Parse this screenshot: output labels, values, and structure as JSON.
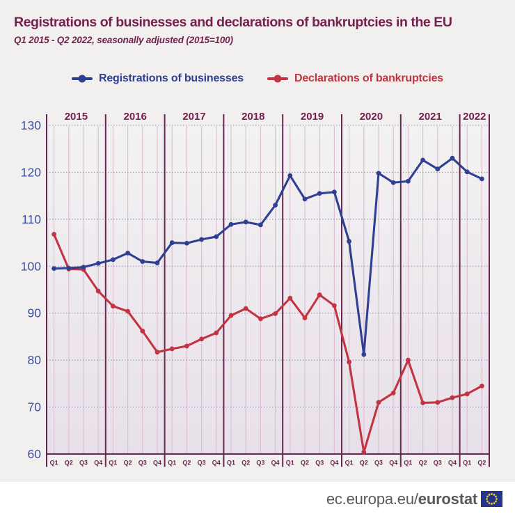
{
  "header": {
    "title": "Registrations of businesses and declarations of bankruptcies in the EU",
    "subtitle": "Q1 2015 - Q2 2022, seasonally adjusted (2015=100)"
  },
  "legend": {
    "items": [
      {
        "label": "Registrations of businesses",
        "color": "#2f3f92"
      },
      {
        "label": "Declarations of bankruptcies",
        "color": "#c23441"
      }
    ]
  },
  "footer": {
    "url_regular": "ec.europa.eu/",
    "url_bold": "eurostat",
    "flag_icon": "eu-flag-icon"
  },
  "colors": {
    "plum": "#75204f",
    "axis_dark": "#6b2551",
    "quarter_line": "#dcc0d2",
    "grid_dot": "#8d9cc9",
    "y_label": "#3c4da2",
    "plot_top": "#f3f2f2",
    "plot_bottom": "#e8e0e9",
    "page_bg": "#f1f0ee",
    "footer_bg": "#ffffff",
    "footer_text": "#595959",
    "flag_blue": "#26358c",
    "star_yellow": "#f9d616"
  },
  "chart_data": {
    "type": "line",
    "title": "Registrations of businesses and declarations of bankruptcies in the EU",
    "subtitle": "Q1 2015 - Q2 2022, seasonally adjusted (2015=100)",
    "xlabel": "",
    "ylabel": "",
    "ylim": [
      60,
      130
    ],
    "yticks": [
      60,
      70,
      80,
      90,
      100,
      110,
      120,
      130
    ],
    "grid": "horizontal-dotted",
    "legend_position": "top",
    "years": [
      {
        "label": "2015",
        "quarters": 4
      },
      {
        "label": "2016",
        "quarters": 4
      },
      {
        "label": "2017",
        "quarters": 4
      },
      {
        "label": "2018",
        "quarters": 4
      },
      {
        "label": "2019",
        "quarters": 4
      },
      {
        "label": "2020",
        "quarters": 4
      },
      {
        "label": "2021",
        "quarters": 4
      },
      {
        "label": "2022",
        "quarters": 2
      }
    ],
    "x_quarter_labels": [
      "Q1",
      "Q2",
      "Q3",
      "Q4",
      "Q1",
      "Q2",
      "Q3",
      "Q4",
      "Q1",
      "Q2",
      "Q3",
      "Q4",
      "Q1",
      "Q2",
      "Q3",
      "Q4",
      "Q1",
      "Q2",
      "Q3",
      "Q4",
      "Q1",
      "Q2",
      "Q3",
      "Q4",
      "Q1",
      "Q2",
      "Q3",
      "Q4",
      "Q1",
      "Q2"
    ],
    "series": [
      {
        "name": "Registrations of businesses",
        "color": "#2f3f92",
        "values": [
          99.5,
          99.6,
          99.8,
          100.6,
          101.4,
          102.8,
          101.0,
          100.7,
          105.0,
          104.9,
          105.7,
          106.3,
          108.9,
          109.4,
          108.8,
          113.0,
          119.3,
          114.3,
          115.5,
          115.8,
          105.3,
          81.2,
          119.8,
          117.8,
          118.1,
          122.6,
          120.7,
          123.0,
          120.1,
          118.6
        ]
      },
      {
        "name": "Declarations of bankruptcies",
        "color": "#c23441",
        "values": [
          106.8,
          99.4,
          99.3,
          94.7,
          91.5,
          90.4,
          86.2,
          81.7,
          82.4,
          83.0,
          84.5,
          85.8,
          89.5,
          91.0,
          88.8,
          89.9,
          93.2,
          89.0,
          93.9,
          91.6,
          79.6,
          60.4,
          71.0,
          73.0,
          80.0,
          70.9,
          71.0,
          72.0,
          72.8,
          74.5
        ]
      }
    ]
  }
}
